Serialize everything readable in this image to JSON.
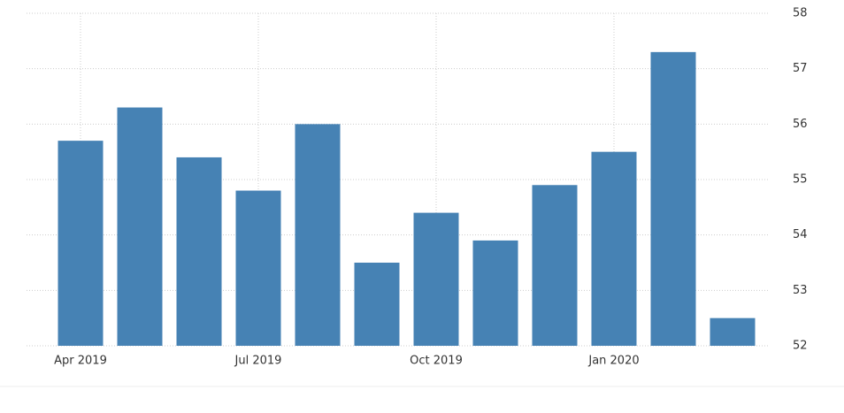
{
  "chart_data": {
    "type": "bar",
    "categories": [
      "Apr 2019",
      null,
      null,
      "Jul 2019",
      null,
      null,
      "Oct 2019",
      null,
      null,
      "Jan 2020",
      null,
      null
    ],
    "values": [
      55.7,
      56.3,
      55.4,
      54.8,
      56.0,
      53.5,
      54.4,
      53.9,
      54.9,
      55.5,
      57.3,
      52.5
    ],
    "color": "#4682b4",
    "ylim": [
      52,
      58
    ],
    "yticks": [
      52,
      53,
      54,
      55,
      56,
      57,
      58
    ],
    "grid": true
  }
}
